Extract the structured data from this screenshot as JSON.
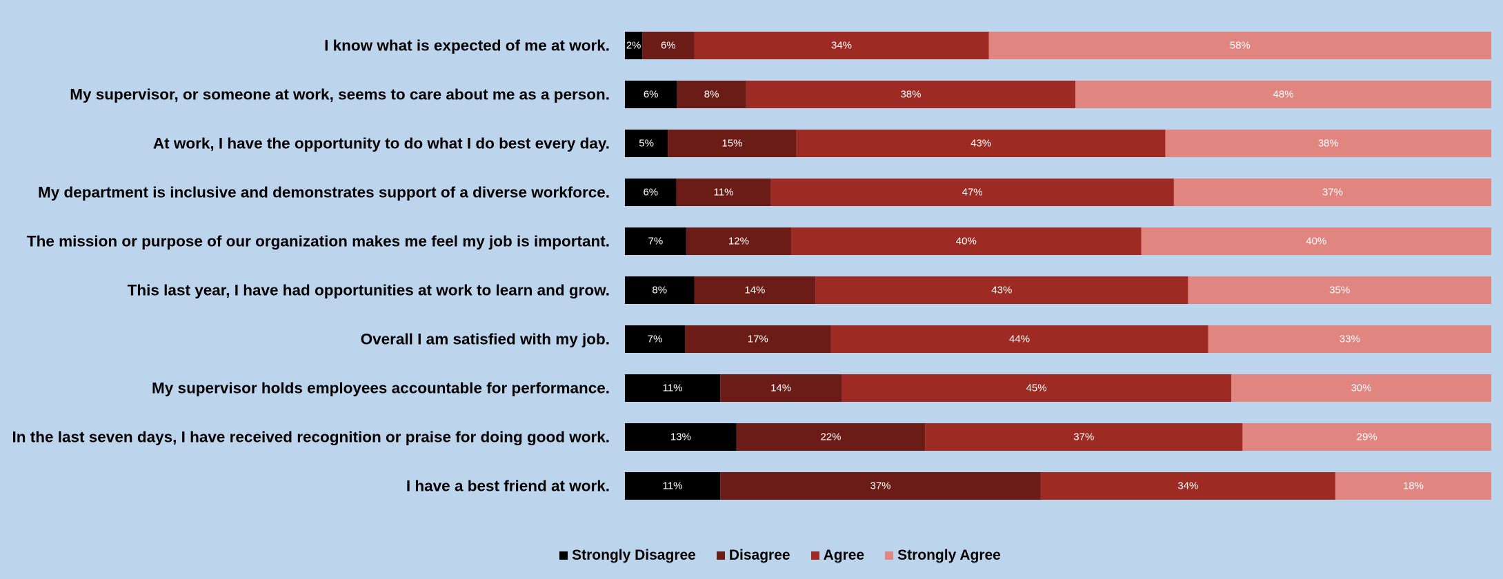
{
  "chart_data": {
    "type": "bar",
    "orientation": "horizontal",
    "stacked": true,
    "normalized_percent": true,
    "categories": [
      "I know what is expected of me at work.",
      "My supervisor, or someone at work, seems to care about me as a person.",
      "At work, I have the opportunity to do what I do best every day.",
      "My department is inclusive and demonstrates support of a diverse workforce.",
      "The mission or purpose of our organization makes me feel my job is important.",
      "This last year, I have had opportunities at work to learn and grow.",
      "Overall I am satisfied with my job.",
      "My supervisor holds employees accountable for performance.",
      "In the last seven days, I have received recognition or praise for doing good work.",
      "I have a best friend at work."
    ],
    "series": [
      {
        "name": "Strongly Disagree",
        "color": "#000000",
        "values": [
          2,
          6,
          5,
          6,
          7,
          8,
          7,
          11,
          13,
          11
        ]
      },
      {
        "name": "Disagree",
        "color": "#6b1c17",
        "values": [
          6,
          8,
          15,
          11,
          12,
          14,
          17,
          14,
          22,
          37
        ]
      },
      {
        "name": "Agree",
        "color": "#9d2b24",
        "values": [
          34,
          38,
          43,
          47,
          40,
          43,
          44,
          45,
          37,
          34
        ]
      },
      {
        "name": "Strongly Agree",
        "color": "#e08580",
        "values": [
          58,
          48,
          38,
          37,
          40,
          35,
          33,
          30,
          29,
          18
        ]
      }
    ],
    "value_suffix": "%",
    "grid": false,
    "legend_position": "bottom"
  }
}
